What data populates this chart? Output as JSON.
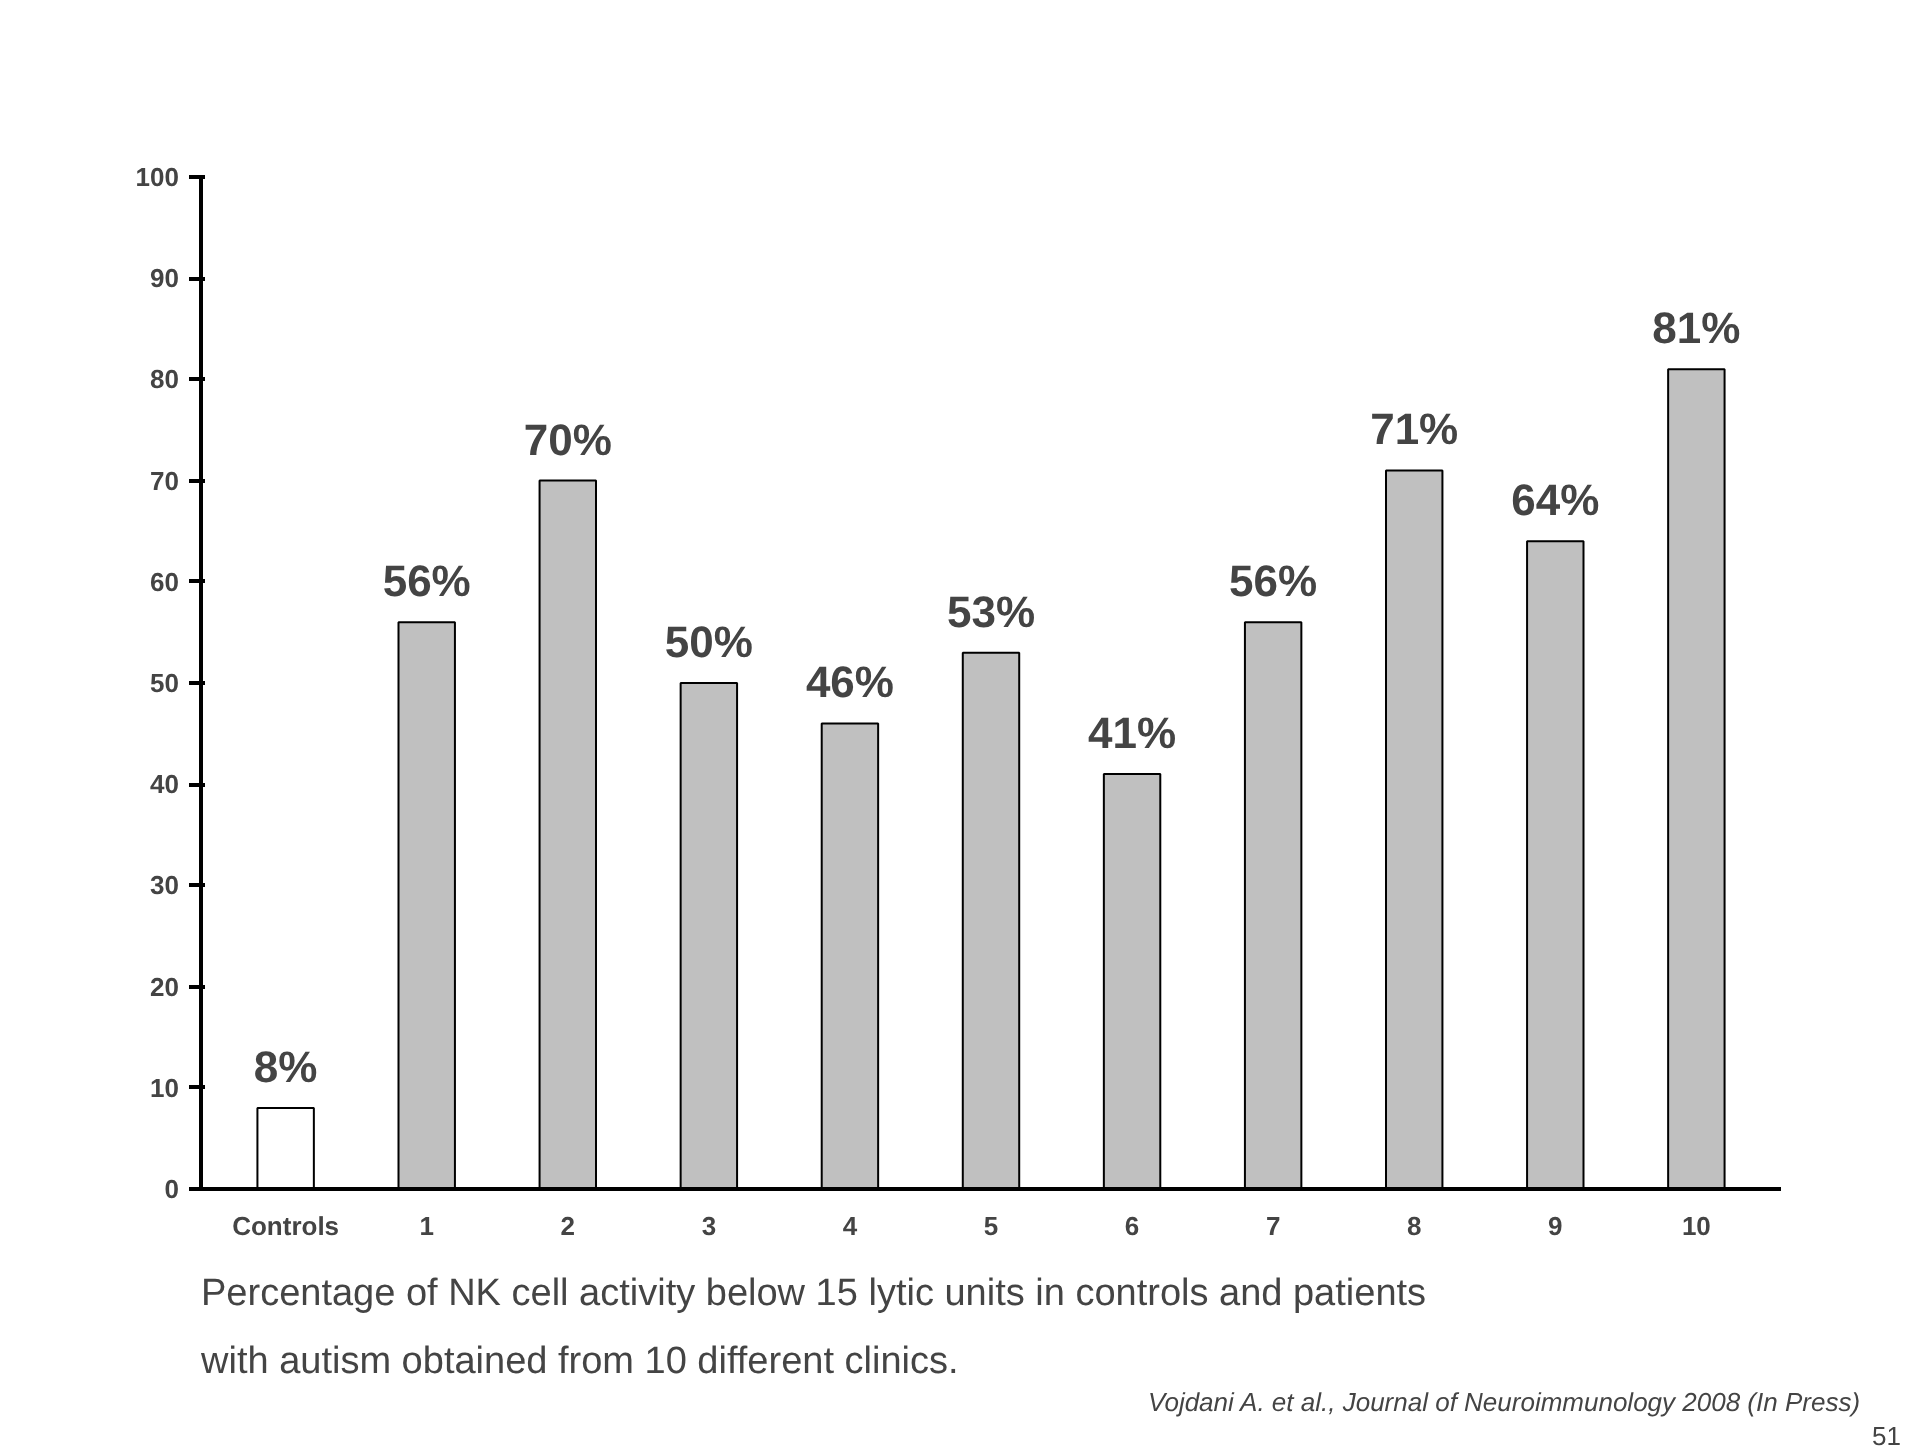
{
  "chart_data": {
    "type": "bar",
    "categories": [
      "Controls",
      "1",
      "2",
      "3",
      "4",
      "5",
      "6",
      "7",
      "8",
      "9",
      "10"
    ],
    "values": [
      8,
      56,
      70,
      50,
      46,
      53,
      41,
      56,
      71,
      64,
      81
    ],
    "colors": [
      "#ffffff",
      "#c0c0c0",
      "#c0c0c0",
      "#c0c0c0",
      "#c0c0c0",
      "#c0c0c0",
      "#c0c0c0",
      "#c0c0c0",
      "#c0c0c0",
      "#c0c0c0",
      "#c0c0c0"
    ],
    "value_labels": [
      "8%",
      "56%",
      "70%",
      "50%",
      "46%",
      "53%",
      "41%",
      "56%",
      "71%",
      "64%",
      "81%"
    ],
    "ylim": [
      0,
      100
    ],
    "yticks": [
      0,
      10,
      20,
      30,
      40,
      50,
      60,
      70,
      80,
      90,
      100
    ],
    "grid": false,
    "annotations": [
      "Percentage of NK cell activity below 15 lytic units in controls and patients with autism obtained from 10 different clinics.",
      "Vojdani A. et al., Journal of Neuroimmunology 2008 (In Press)",
      "51"
    ]
  }
}
